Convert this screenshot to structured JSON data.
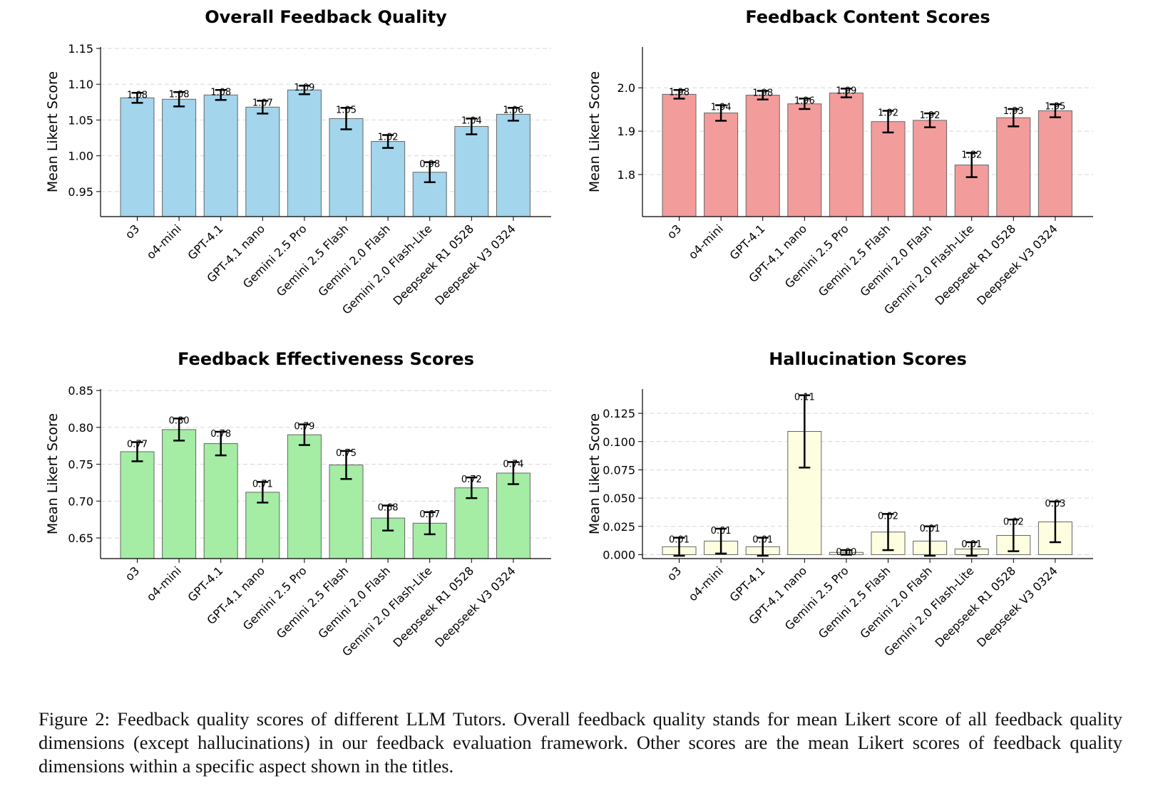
{
  "chart_data": [
    {
      "type": "bar",
      "title": "Overall Feedback Quality",
      "xlabel": "",
      "ylabel": "Mean Likert Score",
      "ylim": [
        0.915,
        1.152
      ],
      "yticks": [
        "0.95",
        "1.00",
        "1.05",
        "1.10",
        "1.15"
      ],
      "grid": true,
      "color": "#a3d5ec",
      "categories": [
        "o3",
        "o4-mini",
        "GPT-4.1",
        "GPT-4.1 nano",
        "Gemini 2.5 Pro",
        "Gemini 2.5 Flash",
        "Gemini 2.0 Flash",
        "Gemini 2.0 Flash-Lite",
        "Deepseek R1 0528",
        "Deepseek V3 0324"
      ],
      "values": [
        1.081,
        1.079,
        1.085,
        1.068,
        1.092,
        1.052,
        1.02,
        0.977,
        1.041,
        1.058
      ],
      "errors": [
        0.007,
        0.01,
        0.007,
        0.009,
        0.006,
        0.015,
        0.009,
        0.014,
        0.011,
        0.009
      ],
      "value_labels": [
        "1.08",
        "1.08",
        "1.08",
        "1.07",
        "1.09",
        "1.05",
        "1.02",
        "0.98",
        "1.04",
        "1.06"
      ]
    },
    {
      "type": "bar",
      "title": "Feedback Content Scores",
      "xlabel": "",
      "ylabel": "Mean Likert Score",
      "ylim": [
        1.703,
        2.094
      ],
      "yticks": [
        "1.8",
        "1.9",
        "2.0"
      ],
      "grid": true,
      "color": "#f29d9c",
      "categories": [
        "o3",
        "o4-mini",
        "GPT-4.1",
        "GPT-4.1 nano",
        "Gemini 2.5 Pro",
        "Gemini 2.5 Flash",
        "Gemini 2.0 Flash",
        "Gemini 2.0 Flash-Lite",
        "Deepseek R1 0528",
        "Deepseek V3 0324"
      ],
      "values": [
        1.985,
        1.942,
        1.983,
        1.963,
        1.988,
        1.922,
        1.925,
        1.822,
        1.931,
        1.947
      ],
      "errors": [
        0.01,
        0.018,
        0.01,
        0.012,
        0.01,
        0.025,
        0.016,
        0.028,
        0.02,
        0.015
      ],
      "value_labels": [
        "1.98",
        "1.94",
        "1.98",
        "1.96",
        "1.99",
        "1.92",
        "1.92",
        "1.82",
        "1.93",
        "1.95"
      ]
    },
    {
      "type": "bar",
      "title": "Feedback Effectiveness Scores",
      "xlabel": "",
      "ylabel": "Mean Likert Score",
      "ylim": [
        0.622,
        0.852
      ],
      "yticks": [
        "0.65",
        "0.70",
        "0.75",
        "0.80",
        "0.85"
      ],
      "grid": true,
      "color": "#a5eca5",
      "categories": [
        "o3",
        "o4-mini",
        "GPT-4.1",
        "GPT-4.1 nano",
        "Gemini 2.5 Pro",
        "Gemini 2.5 Flash",
        "Gemini 2.0 Flash",
        "Gemini 2.0 Flash-Lite",
        "Deepseek R1 0528",
        "Deepseek V3 0324"
      ],
      "values": [
        0.767,
        0.797,
        0.778,
        0.712,
        0.79,
        0.749,
        0.677,
        0.67,
        0.718,
        0.738
      ],
      "errors": [
        0.013,
        0.015,
        0.016,
        0.014,
        0.014,
        0.019,
        0.017,
        0.015,
        0.014,
        0.015
      ],
      "value_labels": [
        "0.77",
        "0.80",
        "0.78",
        "0.71",
        "0.79",
        "0.75",
        "0.68",
        "0.67",
        "0.72",
        "0.74"
      ]
    },
    {
      "type": "bar",
      "title": "Hallucination Scores",
      "xlabel": "",
      "ylabel": "Mean Likert Score",
      "ylim": [
        -0.0035,
        0.1465
      ],
      "yticks": [
        "0.000",
        "0.025",
        "0.050",
        "0.075",
        "0.100",
        "0.125"
      ],
      "grid": true,
      "color": "#fdfde0",
      "categories": [
        "o3",
        "o4-mini",
        "GPT-4.1",
        "GPT-4.1 nano",
        "Gemini 2.5 Pro",
        "Gemini 2.5 Flash",
        "Gemini 2.0 Flash",
        "Gemini 2.0 Flash-Lite",
        "Deepseek R1 0528",
        "Deepseek V3 0324"
      ],
      "values": [
        0.007,
        0.012,
        0.007,
        0.109,
        0.002,
        0.02,
        0.012,
        0.005,
        0.017,
        0.029
      ],
      "errors": [
        0.008,
        0.011,
        0.008,
        0.032,
        0.002,
        0.016,
        0.013,
        0.006,
        0.014,
        0.018
      ],
      "value_labels": [
        "0.01",
        "0.01",
        "0.01",
        "0.11",
        "0.00",
        "0.02",
        "0.01",
        "0.01",
        "0.02",
        "0.03"
      ]
    }
  ],
  "caption": "Figure 2: Feedback quality scores of different LLM Tutors. Overall feedback quality stands for mean Likert score of all feedback quality dimensions (except hallucinations) in our feedback evaluation framework. Other scores are the mean Likert scores of feedback quality dimensions within a specific aspect shown in the titles."
}
